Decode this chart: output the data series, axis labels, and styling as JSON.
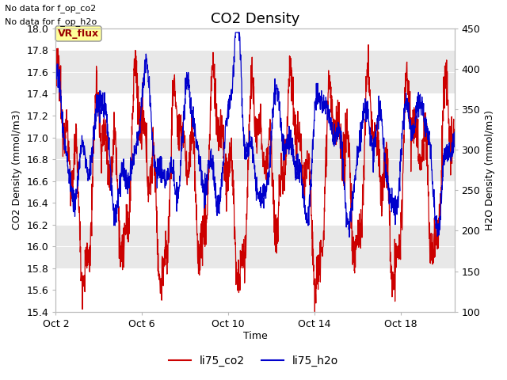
{
  "title": "CO2 Density",
  "xlabel": "Time",
  "ylabel_left": "CO2 Density (mmol/m3)",
  "ylabel_right": "H2O Density (mmol/m3)",
  "ylim_left": [
    15.4,
    18.0
  ],
  "ylim_right": [
    100,
    450
  ],
  "annotation1": "No data for f_op_co2",
  "annotation2": "No data for f_op_h2o",
  "vr_flux_label": "VR_flux",
  "legend_co2": "li75_co2",
  "legend_h2o": "li75_h2o",
  "color_co2": "#CC0000",
  "color_h2o": "#0000CC",
  "background_outer": "#FFFFFF",
  "plot_bg_white": "#FFFFFF",
  "plot_bg_gray": "#E8E8E8",
  "vr_flux_bg": "#FFFF99",
  "vr_flux_border": "#AAAAAA",
  "vr_flux_text_color": "#990000",
  "xtick_labels": [
    "Oct 2",
    "Oct 6",
    "Oct 10",
    "Oct 14",
    "Oct 18"
  ],
  "xtick_positions": [
    0,
    4,
    8,
    12,
    16
  ],
  "title_fontsize": 13,
  "label_fontsize": 9,
  "tick_fontsize": 9,
  "legend_fontsize": 10,
  "annot_fontsize": 8
}
